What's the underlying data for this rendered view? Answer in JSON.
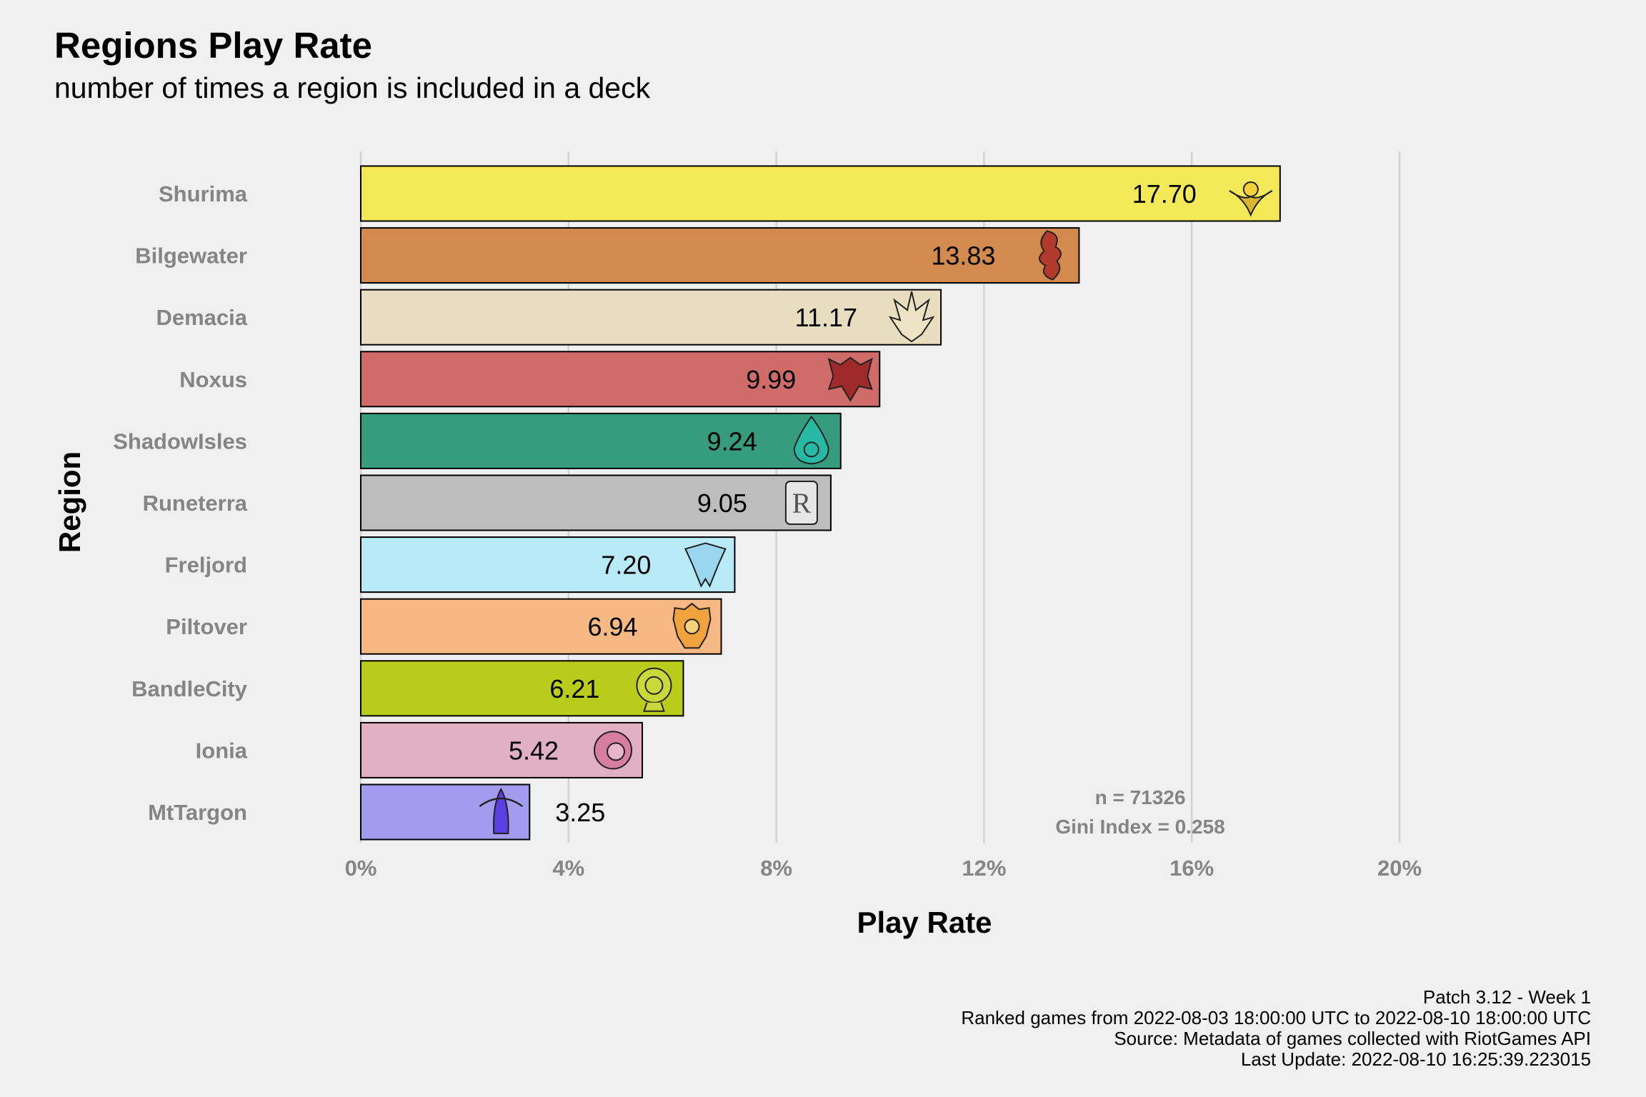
{
  "chart_data": {
    "type": "bar",
    "orientation": "horizontal",
    "title": "Regions Play Rate",
    "subtitle": "number of times a region is included in a deck",
    "xlabel": "Play Rate",
    "ylabel": "Region",
    "xlim": [
      0,
      20
    ],
    "x_ticks": [
      "0%",
      "4%",
      "8%",
      "12%",
      "16%",
      "20%"
    ],
    "x_tick_values": [
      0,
      4,
      8,
      12,
      16,
      20
    ],
    "grid": "vertical major",
    "legend": "none",
    "categories": [
      "Shurima",
      "Bilgewater",
      "Demacia",
      "Noxus",
      "ShadowIsles",
      "Runeterra",
      "Freljord",
      "Piltover",
      "BandleCity",
      "Ionia",
      "MtTargon"
    ],
    "values": [
      17.7,
      13.83,
      11.17,
      9.99,
      9.24,
      9.05,
      7.2,
      6.94,
      6.21,
      5.42,
      3.25
    ],
    "value_labels": [
      "17.70",
      "13.83",
      "11.17",
      "9.99",
      "9.24",
      "9.05",
      "7.20",
      "6.94",
      "6.21",
      "5.42",
      "3.25"
    ],
    "colors": [
      "#f2e858",
      "#d38a4f",
      "#e8ddbf",
      "#cf6b69",
      "#379c7e",
      "#bdbdbd",
      "#b9eaf7",
      "#f6b983",
      "#bacc1b",
      "#e1b0c2",
      "#a39bed"
    ],
    "icons": [
      "shurima-icon",
      "bilgewater-icon",
      "demacia-icon",
      "noxus-icon",
      "shadowisles-icon",
      "runeterra-icon",
      "freljord-icon",
      "piltover-icon",
      "bandlecity-icon",
      "ionia-icon",
      "mttargon-icon"
    ],
    "annotations": [
      "n = 71326",
      "Gini Index = 0.258"
    ]
  },
  "caption": [
    "Patch 3.12 - Week 1",
    "Ranked games from 2022-08-03 18:00:00 UTC to 2022-08-10 18:00:00 UTC",
    "Source: Metadata of games collected with RiotGames API",
    "Last Update: 2022-08-10 16:25:39.223015"
  ]
}
